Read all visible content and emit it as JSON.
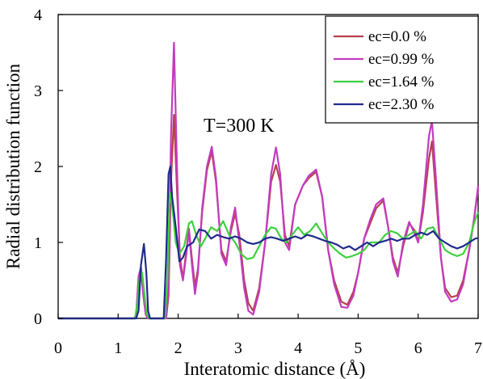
{
  "chart_data": {
    "type": "line",
    "title": "",
    "xlabel": "Interatomic distance (Å)",
    "ylabel": "Radial distribution function",
    "xlim": [
      0,
      7
    ],
    "ylim": [
      0,
      4
    ],
    "xticks": [
      "0",
      "1",
      "2",
      "3",
      "4",
      "5",
      "6",
      "7"
    ],
    "yticks": [
      "0",
      "1",
      "2",
      "3",
      "4"
    ],
    "grid": false,
    "legend_position": "top-right",
    "annotation": "T=300 K",
    "series": [
      {
        "name": "ec=0.0 %",
        "color": "#b8404c",
        "points": [
          [
            0,
            0
          ],
          [
            1.27,
            0
          ],
          [
            1.3,
            0.05
          ],
          [
            1.34,
            0.5
          ],
          [
            1.38,
            0.62
          ],
          [
            1.42,
            0.3
          ],
          [
            1.46,
            0.05
          ],
          [
            1.5,
            0
          ],
          [
            1.8,
            0
          ],
          [
            1.84,
            0.3
          ],
          [
            1.88,
            1.8
          ],
          [
            1.93,
            2.68
          ],
          [
            1.98,
            1.7
          ],
          [
            2.03,
            0.8
          ],
          [
            2.08,
            0.52
          ],
          [
            2.13,
            0.85
          ],
          [
            2.18,
            1.18
          ],
          [
            2.23,
            0.78
          ],
          [
            2.28,
            0.42
          ],
          [
            2.33,
            0.65
          ],
          [
            2.4,
            1.4
          ],
          [
            2.48,
            1.95
          ],
          [
            2.56,
            2.2
          ],
          [
            2.63,
            1.8
          ],
          [
            2.72,
            0.9
          ],
          [
            2.8,
            0.75
          ],
          [
            2.88,
            1.15
          ],
          [
            2.95,
            1.38
          ],
          [
            3.02,
            1.1
          ],
          [
            3.1,
            0.5
          ],
          [
            3.17,
            0.2
          ],
          [
            3.25,
            0.1
          ],
          [
            3.35,
            0.4
          ],
          [
            3.45,
            1.0
          ],
          [
            3.55,
            1.8
          ],
          [
            3.63,
            2.02
          ],
          [
            3.7,
            1.8
          ],
          [
            3.78,
            1.1
          ],
          [
            3.85,
            0.95
          ],
          [
            3.95,
            1.5
          ],
          [
            4.08,
            1.75
          ],
          [
            4.18,
            1.85
          ],
          [
            4.3,
            1.93
          ],
          [
            4.4,
            1.6
          ],
          [
            4.5,
            0.9
          ],
          [
            4.6,
            0.5
          ],
          [
            4.72,
            0.22
          ],
          [
            4.82,
            0.18
          ],
          [
            4.92,
            0.35
          ],
          [
            5.0,
            0.6
          ],
          [
            5.1,
            1.05
          ],
          [
            5.2,
            1.25
          ],
          [
            5.3,
            1.45
          ],
          [
            5.42,
            1.55
          ],
          [
            5.5,
            1.2
          ],
          [
            5.58,
            0.8
          ],
          [
            5.66,
            0.6
          ],
          [
            5.75,
            0.95
          ],
          [
            5.85,
            1.25
          ],
          [
            5.95,
            1.15
          ],
          [
            6.0,
            1.0
          ],
          [
            6.08,
            1.4
          ],
          [
            6.18,
            2.1
          ],
          [
            6.23,
            2.33
          ],
          [
            6.3,
            1.6
          ],
          [
            6.38,
            0.8
          ],
          [
            6.45,
            0.4
          ],
          [
            6.55,
            0.28
          ],
          [
            6.65,
            0.3
          ],
          [
            6.75,
            0.5
          ],
          [
            6.85,
            0.9
          ],
          [
            6.93,
            1.3
          ],
          [
            7.0,
            1.7
          ]
        ]
      },
      {
        "name": "ec=0.99 %",
        "color": "#c23cc0",
        "points": [
          [
            0,
            0
          ],
          [
            1.27,
            0
          ],
          [
            1.3,
            0.05
          ],
          [
            1.34,
            0.55
          ],
          [
            1.38,
            0.68
          ],
          [
            1.42,
            0.3
          ],
          [
            1.46,
            0.05
          ],
          [
            1.5,
            0
          ],
          [
            1.8,
            0
          ],
          [
            1.84,
            0.4
          ],
          [
            1.88,
            2.4
          ],
          [
            1.93,
            3.63
          ],
          [
            1.98,
            2.0
          ],
          [
            2.03,
            0.7
          ],
          [
            2.08,
            0.5
          ],
          [
            2.13,
            0.8
          ],
          [
            2.18,
            1.15
          ],
          [
            2.23,
            0.7
          ],
          [
            2.28,
            0.32
          ],
          [
            2.33,
            0.6
          ],
          [
            2.4,
            1.45
          ],
          [
            2.48,
            2.0
          ],
          [
            2.56,
            2.26
          ],
          [
            2.63,
            1.85
          ],
          [
            2.72,
            0.85
          ],
          [
            2.8,
            0.7
          ],
          [
            2.88,
            1.2
          ],
          [
            2.95,
            1.46
          ],
          [
            3.02,
            1.0
          ],
          [
            3.1,
            0.4
          ],
          [
            3.17,
            0.1
          ],
          [
            3.25,
            0.05
          ],
          [
            3.35,
            0.35
          ],
          [
            3.45,
            1.0
          ],
          [
            3.55,
            1.9
          ],
          [
            3.63,
            2.25
          ],
          [
            3.7,
            1.9
          ],
          [
            3.78,
            1.0
          ],
          [
            3.85,
            0.9
          ],
          [
            3.95,
            1.5
          ],
          [
            4.08,
            1.75
          ],
          [
            4.18,
            1.88
          ],
          [
            4.3,
            1.96
          ],
          [
            4.4,
            1.6
          ],
          [
            4.5,
            0.9
          ],
          [
            4.6,
            0.45
          ],
          [
            4.72,
            0.15
          ],
          [
            4.82,
            0.14
          ],
          [
            4.92,
            0.3
          ],
          [
            5.0,
            0.6
          ],
          [
            5.1,
            1.05
          ],
          [
            5.2,
            1.3
          ],
          [
            5.3,
            1.5
          ],
          [
            5.42,
            1.58
          ],
          [
            5.5,
            1.2
          ],
          [
            5.58,
            0.75
          ],
          [
            5.66,
            0.55
          ],
          [
            5.75,
            1.0
          ],
          [
            5.85,
            1.27
          ],
          [
            5.95,
            1.1
          ],
          [
            6.0,
            1.0
          ],
          [
            6.08,
            1.5
          ],
          [
            6.18,
            2.4
          ],
          [
            6.23,
            2.6
          ],
          [
            6.3,
            1.8
          ],
          [
            6.38,
            0.8
          ],
          [
            6.45,
            0.35
          ],
          [
            6.55,
            0.22
          ],
          [
            6.65,
            0.25
          ],
          [
            6.75,
            0.45
          ],
          [
            6.85,
            0.9
          ],
          [
            6.93,
            1.3
          ],
          [
            7.0,
            1.75
          ]
        ]
      },
      {
        "name": "ec=1.64 %",
        "color": "#3ed03e",
        "points": [
          [
            0,
            0
          ],
          [
            1.28,
            0
          ],
          [
            1.32,
            0.2
          ],
          [
            1.36,
            0.55
          ],
          [
            1.4,
            0.6
          ],
          [
            1.44,
            0.3
          ],
          [
            1.48,
            0.05
          ],
          [
            1.52,
            0
          ],
          [
            1.78,
            0
          ],
          [
            1.82,
            0.5
          ],
          [
            1.86,
            1.65
          ],
          [
            1.9,
            1.5
          ],
          [
            1.96,
            1.0
          ],
          [
            2.02,
            0.85
          ],
          [
            2.1,
            0.95
          ],
          [
            2.18,
            1.25
          ],
          [
            2.23,
            1.28
          ],
          [
            2.3,
            1.1
          ],
          [
            2.38,
            0.95
          ],
          [
            2.45,
            1.05
          ],
          [
            2.55,
            1.2
          ],
          [
            2.65,
            1.15
          ],
          [
            2.75,
            1.28
          ],
          [
            2.85,
            1.1
          ],
          [
            2.95,
            1.0
          ],
          [
            3.05,
            0.85
          ],
          [
            3.15,
            0.78
          ],
          [
            3.25,
            0.8
          ],
          [
            3.35,
            0.95
          ],
          [
            3.45,
            1.1
          ],
          [
            3.55,
            1.2
          ],
          [
            3.63,
            1.18
          ],
          [
            3.72,
            1.05
          ],
          [
            3.8,
            1.0
          ],
          [
            3.9,
            1.1
          ],
          [
            4.0,
            1.2
          ],
          [
            4.1,
            1.1
          ],
          [
            4.2,
            1.15
          ],
          [
            4.3,
            1.25
          ],
          [
            4.4,
            1.12
          ],
          [
            4.5,
            1.0
          ],
          [
            4.6,
            0.92
          ],
          [
            4.7,
            0.85
          ],
          [
            4.8,
            0.8
          ],
          [
            4.9,
            0.82
          ],
          [
            5.0,
            0.85
          ],
          [
            5.1,
            0.9
          ],
          [
            5.2,
            1.0
          ],
          [
            5.35,
            1.0
          ],
          [
            5.45,
            1.1
          ],
          [
            5.55,
            1.15
          ],
          [
            5.65,
            1.12
          ],
          [
            5.75,
            1.05
          ],
          [
            5.85,
            1.1
          ],
          [
            5.95,
            1.15
          ],
          [
            6.05,
            1.05
          ],
          [
            6.15,
            1.18
          ],
          [
            6.25,
            1.2
          ],
          [
            6.35,
            1.05
          ],
          [
            6.45,
            0.9
          ],
          [
            6.55,
            0.85
          ],
          [
            6.65,
            0.82
          ],
          [
            6.75,
            0.85
          ],
          [
            6.85,
            1.0
          ],
          [
            6.93,
            1.25
          ],
          [
            7.0,
            1.4
          ]
        ]
      },
      {
        "name": "ec=2.30 %",
        "color": "#1f2a8a",
        "points": [
          [
            0,
            0
          ],
          [
            1.3,
            0
          ],
          [
            1.34,
            0.1
          ],
          [
            1.38,
            0.7
          ],
          [
            1.43,
            0.98
          ],
          [
            1.47,
            0.6
          ],
          [
            1.5,
            0.1
          ],
          [
            1.53,
            0
          ],
          [
            1.76,
            0
          ],
          [
            1.8,
            0.8
          ],
          [
            1.84,
            1.9
          ],
          [
            1.87,
            2.0
          ],
          [
            1.9,
            1.6
          ],
          [
            1.96,
            1.2
          ],
          [
            2.02,
            0.75
          ],
          [
            2.08,
            0.8
          ],
          [
            2.15,
            0.95
          ],
          [
            2.25,
            1.0
          ],
          [
            2.35,
            1.17
          ],
          [
            2.45,
            1.15
          ],
          [
            2.55,
            1.05
          ],
          [
            2.65,
            1.1
          ],
          [
            2.75,
            1.07
          ],
          [
            2.85,
            1.05
          ],
          [
            2.95,
            1.08
          ],
          [
            3.05,
            1.05
          ],
          [
            3.15,
            1.0
          ],
          [
            3.25,
            0.98
          ],
          [
            3.35,
            1.0
          ],
          [
            3.45,
            1.05
          ],
          [
            3.55,
            1.07
          ],
          [
            3.65,
            1.05
          ],
          [
            3.75,
            1.02
          ],
          [
            3.85,
            1.05
          ],
          [
            3.95,
            1.08
          ],
          [
            4.05,
            1.05
          ],
          [
            4.15,
            1.1
          ],
          [
            4.25,
            1.08
          ],
          [
            4.35,
            1.05
          ],
          [
            4.45,
            1.02
          ],
          [
            4.55,
            1.0
          ],
          [
            4.65,
            0.97
          ],
          [
            4.75,
            0.92
          ],
          [
            4.85,
            0.95
          ],
          [
            4.95,
            0.9
          ],
          [
            5.05,
            0.95
          ],
          [
            5.15,
            1.0
          ],
          [
            5.25,
            0.95
          ],
          [
            5.35,
            1.0
          ],
          [
            5.45,
            1.02
          ],
          [
            5.55,
            1.05
          ],
          [
            5.65,
            1.02
          ],
          [
            5.75,
            1.05
          ],
          [
            5.85,
            1.05
          ],
          [
            5.95,
            1.1
          ],
          [
            6.05,
            1.13
          ],
          [
            6.15,
            1.1
          ],
          [
            6.25,
            1.15
          ],
          [
            6.35,
            1.05
          ],
          [
            6.45,
            1.0
          ],
          [
            6.55,
            0.95
          ],
          [
            6.65,
            0.92
          ],
          [
            6.75,
            0.95
          ],
          [
            6.85,
            1.0
          ],
          [
            6.95,
            1.05
          ],
          [
            7.0,
            1.06
          ]
        ]
      }
    ]
  }
}
